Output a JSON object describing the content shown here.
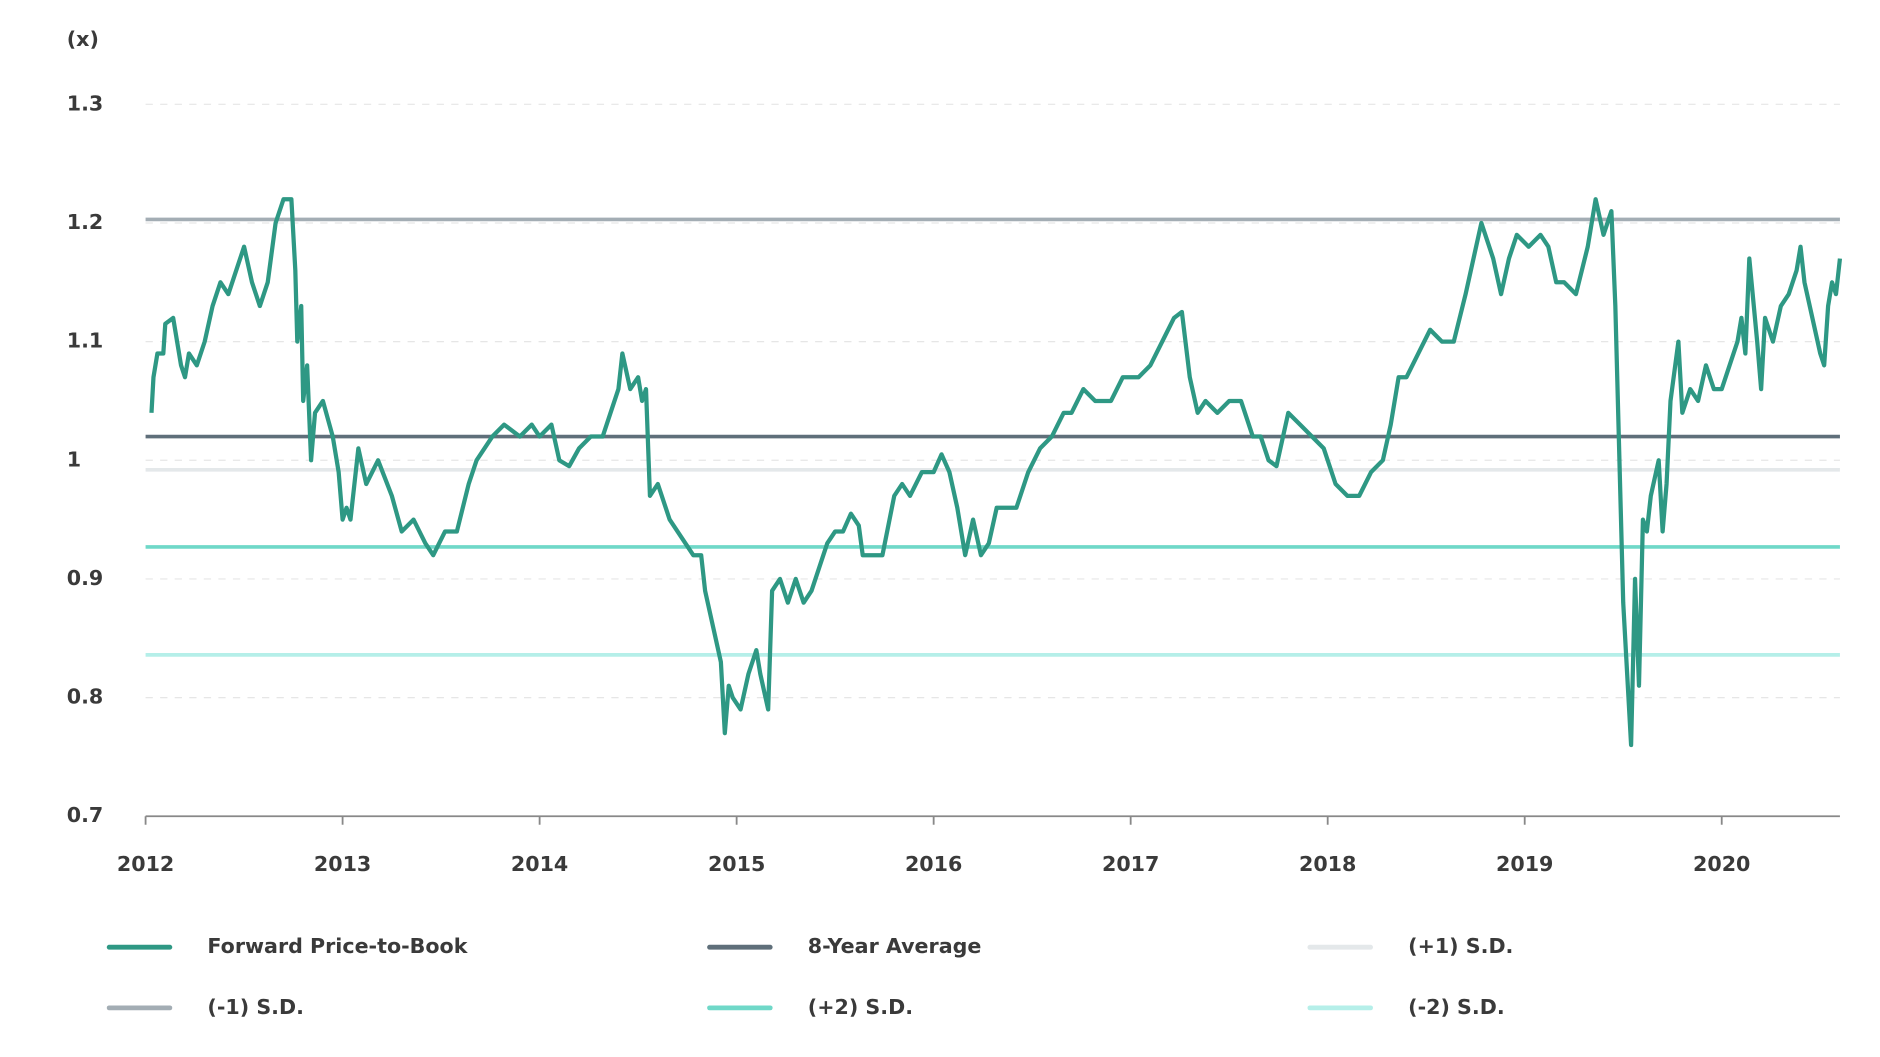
{
  "chart_data": {
    "type": "line",
    "y_unit_label": "(x)",
    "x": [
      2012.03,
      2012.04,
      2012.06,
      2012.09,
      2012.1,
      2012.14,
      2012.18,
      2012.2,
      2012.22,
      2012.26,
      2012.3,
      2012.34,
      2012.38,
      2012.42,
      2012.46,
      2012.5,
      2012.54,
      2012.58,
      2012.62,
      2012.66,
      2012.7,
      2012.74,
      2012.76,
      2012.77,
      2012.79,
      2012.8,
      2012.82,
      2012.84,
      2012.86,
      2012.9,
      2012.95,
      2012.98,
      2013.0,
      2013.02,
      2013.04,
      2013.08,
      2013.12,
      2013.18,
      2013.25,
      2013.3,
      2013.36,
      2013.42,
      2013.46,
      2013.52,
      2013.58,
      2013.64,
      2013.68,
      2013.76,
      2013.82,
      2013.9,
      2013.96,
      2014.0,
      2014.06,
      2014.1,
      2014.15,
      2014.2,
      2014.26,
      2014.32,
      2014.36,
      2014.4,
      2014.42,
      2014.46,
      2014.5,
      2014.52,
      2014.54,
      2014.56,
      2014.6,
      2014.66,
      2014.7,
      2014.74,
      2014.78,
      2014.82,
      2014.84,
      2014.88,
      2014.92,
      2014.94,
      2014.96,
      2014.98,
      2015.02,
      2015.06,
      2015.1,
      2015.12,
      2015.16,
      2015.18,
      2015.22,
      2015.26,
      2015.3,
      2015.34,
      2015.38,
      2015.42,
      2015.46,
      2015.5,
      2015.54,
      2015.58,
      2015.62,
      2015.64,
      2015.7,
      2015.74,
      2015.8,
      2015.84,
      2015.88,
      2015.94,
      2016.0,
      2016.04,
      2016.08,
      2016.12,
      2016.16,
      2016.2,
      2016.24,
      2016.28,
      2016.32,
      2016.36,
      2016.42,
      2016.48,
      2016.54,
      2016.6,
      2016.66,
      2016.7,
      2016.76,
      2016.82,
      2016.9,
      2016.96,
      2017.04,
      2017.1,
      2017.16,
      2017.22,
      2017.26,
      2017.3,
      2017.34,
      2017.38,
      2017.44,
      2017.5,
      2017.56,
      2017.62,
      2017.66,
      2017.7,
      2017.74,
      2017.8,
      2017.86,
      2017.92,
      2017.98,
      2018.04,
      2018.1,
      2018.16,
      2018.22,
      2018.28,
      2018.32,
      2018.36,
      2018.4,
      2018.46,
      2018.52,
      2018.58,
      2018.64,
      2018.7,
      2018.74,
      2018.78,
      2018.84,
      2018.88,
      2018.92,
      2018.96,
      2019.02,
      2019.08,
      2019.12,
      2019.16,
      2019.2,
      2019.26,
      2019.32,
      2019.36,
      2019.4,
      2019.44,
      2019.46,
      2019.5,
      2019.54,
      2019.56,
      2019.58,
      2019.6,
      2019.62,
      2019.64,
      2019.68,
      2019.7,
      2019.72,
      2019.74,
      2019.78,
      2019.8,
      2019.84,
      2019.88,
      2019.92,
      2019.96,
      2020.0,
      2020.04,
      2020.08,
      2020.1,
      2020.12,
      2020.14,
      2020.18,
      2020.2,
      2020.22,
      2020.26,
      2020.3,
      2020.34,
      2020.38,
      2020.4,
      2020.42,
      2020.46,
      2020.5,
      2020.52,
      2020.54,
      2020.56,
      2020.58,
      2020.6
    ],
    "series": [
      {
        "name": "Forward Price-to-Book",
        "color": "#2e9884",
        "values": [
          1.04,
          1.07,
          1.09,
          1.09,
          1.115,
          1.12,
          1.08,
          1.07,
          1.09,
          1.08,
          1.1,
          1.13,
          1.15,
          1.14,
          1.16,
          1.18,
          1.15,
          1.13,
          1.15,
          1.2,
          1.22,
          1.22,
          1.16,
          1.1,
          1.13,
          1.05,
          1.08,
          1.0,
          1.04,
          1.05,
          1.02,
          0.99,
          0.95,
          0.96,
          0.95,
          1.01,
          0.98,
          1.0,
          0.97,
          0.94,
          0.95,
          0.93,
          0.92,
          0.94,
          0.94,
          0.98,
          1.0,
          1.02,
          1.03,
          1.02,
          1.03,
          1.02,
          1.03,
          1.0,
          0.995,
          1.01,
          1.02,
          1.02,
          1.04,
          1.06,
          1.09,
          1.06,
          1.07,
          1.05,
          1.06,
          0.97,
          0.98,
          0.95,
          0.94,
          0.93,
          0.92,
          0.92,
          0.89,
          0.86,
          0.83,
          0.77,
          0.81,
          0.8,
          0.79,
          0.82,
          0.84,
          0.82,
          0.79,
          0.89,
          0.9,
          0.88,
          0.9,
          0.88,
          0.89,
          0.91,
          0.93,
          0.94,
          0.94,
          0.955,
          0.945,
          0.92,
          0.92,
          0.92,
          0.97,
          0.98,
          0.97,
          0.99,
          0.99,
          1.005,
          0.99,
          0.96,
          0.92,
          0.95,
          0.92,
          0.93,
          0.96,
          0.96,
          0.96,
          0.99,
          1.01,
          1.02,
          1.04,
          1.04,
          1.06,
          1.05,
          1.05,
          1.07,
          1.07,
          1.08,
          1.1,
          1.12,
          1.125,
          1.07,
          1.04,
          1.05,
          1.04,
          1.05,
          1.05,
          1.02,
          1.02,
          1.0,
          0.995,
          1.04,
          1.03,
          1.02,
          1.01,
          0.98,
          0.97,
          0.97,
          0.99,
          1.0,
          1.03,
          1.07,
          1.07,
          1.09,
          1.11,
          1.1,
          1.1,
          1.14,
          1.17,
          1.2,
          1.17,
          1.14,
          1.17,
          1.19,
          1.18,
          1.19,
          1.18,
          1.15,
          1.15,
          1.14,
          1.18,
          1.22,
          1.19,
          1.21,
          1.13,
          0.88,
          0.76,
          0.9,
          0.81,
          0.95,
          0.94,
          0.97,
          1.0,
          0.94,
          0.98,
          1.05,
          1.1,
          1.04,
          1.06,
          1.05,
          1.08,
          1.06,
          1.06,
          1.08,
          1.1,
          1.12,
          1.09,
          1.17,
          1.1,
          1.06,
          1.12,
          1.1,
          1.13,
          1.14,
          1.16,
          1.18,
          1.15,
          1.12,
          1.09,
          1.08,
          1.13,
          1.15,
          1.14,
          1.17
        ]
      }
    ],
    "reference_lines": [
      {
        "name": "8-Year Average",
        "color": "#5f6f7a",
        "value": 1.02
      },
      {
        "name": "(+1) S.D.",
        "color": "#e4e8ea",
        "value": 0.992
      },
      {
        "name": "(-1) S.D.",
        "color": "#a3adb4",
        "value": 1.203
      },
      {
        "name": "(+2) S.D.",
        "color": "#6fd8c8",
        "value": 0.927
      },
      {
        "name": "(-2) S.D.",
        "color": "#b5efe9",
        "value": 0.836
      }
    ],
    "xlim": [
      2012,
      2020.6
    ],
    "xticks": [
      2012,
      2013,
      2014,
      2015,
      2016,
      2017,
      2018,
      2019,
      2020
    ],
    "ylim": [
      0.7,
      1.3
    ],
    "yticks": [
      0.7,
      0.8,
      0.9,
      1,
      1.1,
      1.2,
      1.3
    ],
    "grid": true
  }
}
